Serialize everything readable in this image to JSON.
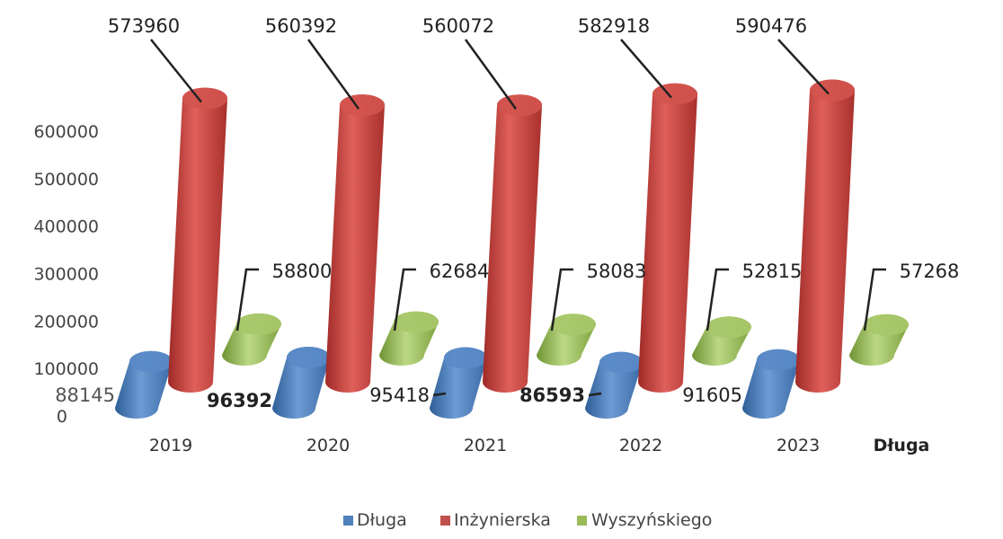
{
  "chart_data": {
    "type": "bar",
    "categories": [
      "2019",
      "2020",
      "2021",
      "2022",
      "2023",
      "Długa"
    ],
    "y_ticks": [
      "0",
      "100000",
      "200000",
      "300000",
      "400000",
      "500000",
      "600000"
    ],
    "ylim": [
      0,
      650000
    ],
    "legend_position": "bottom",
    "series": [
      {
        "name": "Długa",
        "color": "#4f81bd",
        "values": [
          88145,
          96392,
          95418,
          86593,
          91605,
          null
        ]
      },
      {
        "name": "Inżynierska",
        "color": "#c0504d",
        "values": [
          573960,
          560392,
          560072,
          582918,
          590476,
          null
        ]
      },
      {
        "name": "Wyszyńskiego",
        "color": "#9bbb59",
        "values": [
          58800,
          62684,
          58083,
          52815,
          57268,
          null
        ]
      }
    ],
    "data_labels": {
      "dluga": [
        "88145",
        "96392",
        "95418",
        "86593",
        "91605"
      ],
      "inzynierska": [
        "573960",
        "560392",
        "560072",
        "582918",
        "590476"
      ],
      "wyszynskiego": [
        "58800",
        "62684",
        "58083",
        "52815",
        "57268"
      ]
    },
    "legend": [
      "Długa",
      "Inżynierska",
      "Wyszyńskiego"
    ]
  }
}
